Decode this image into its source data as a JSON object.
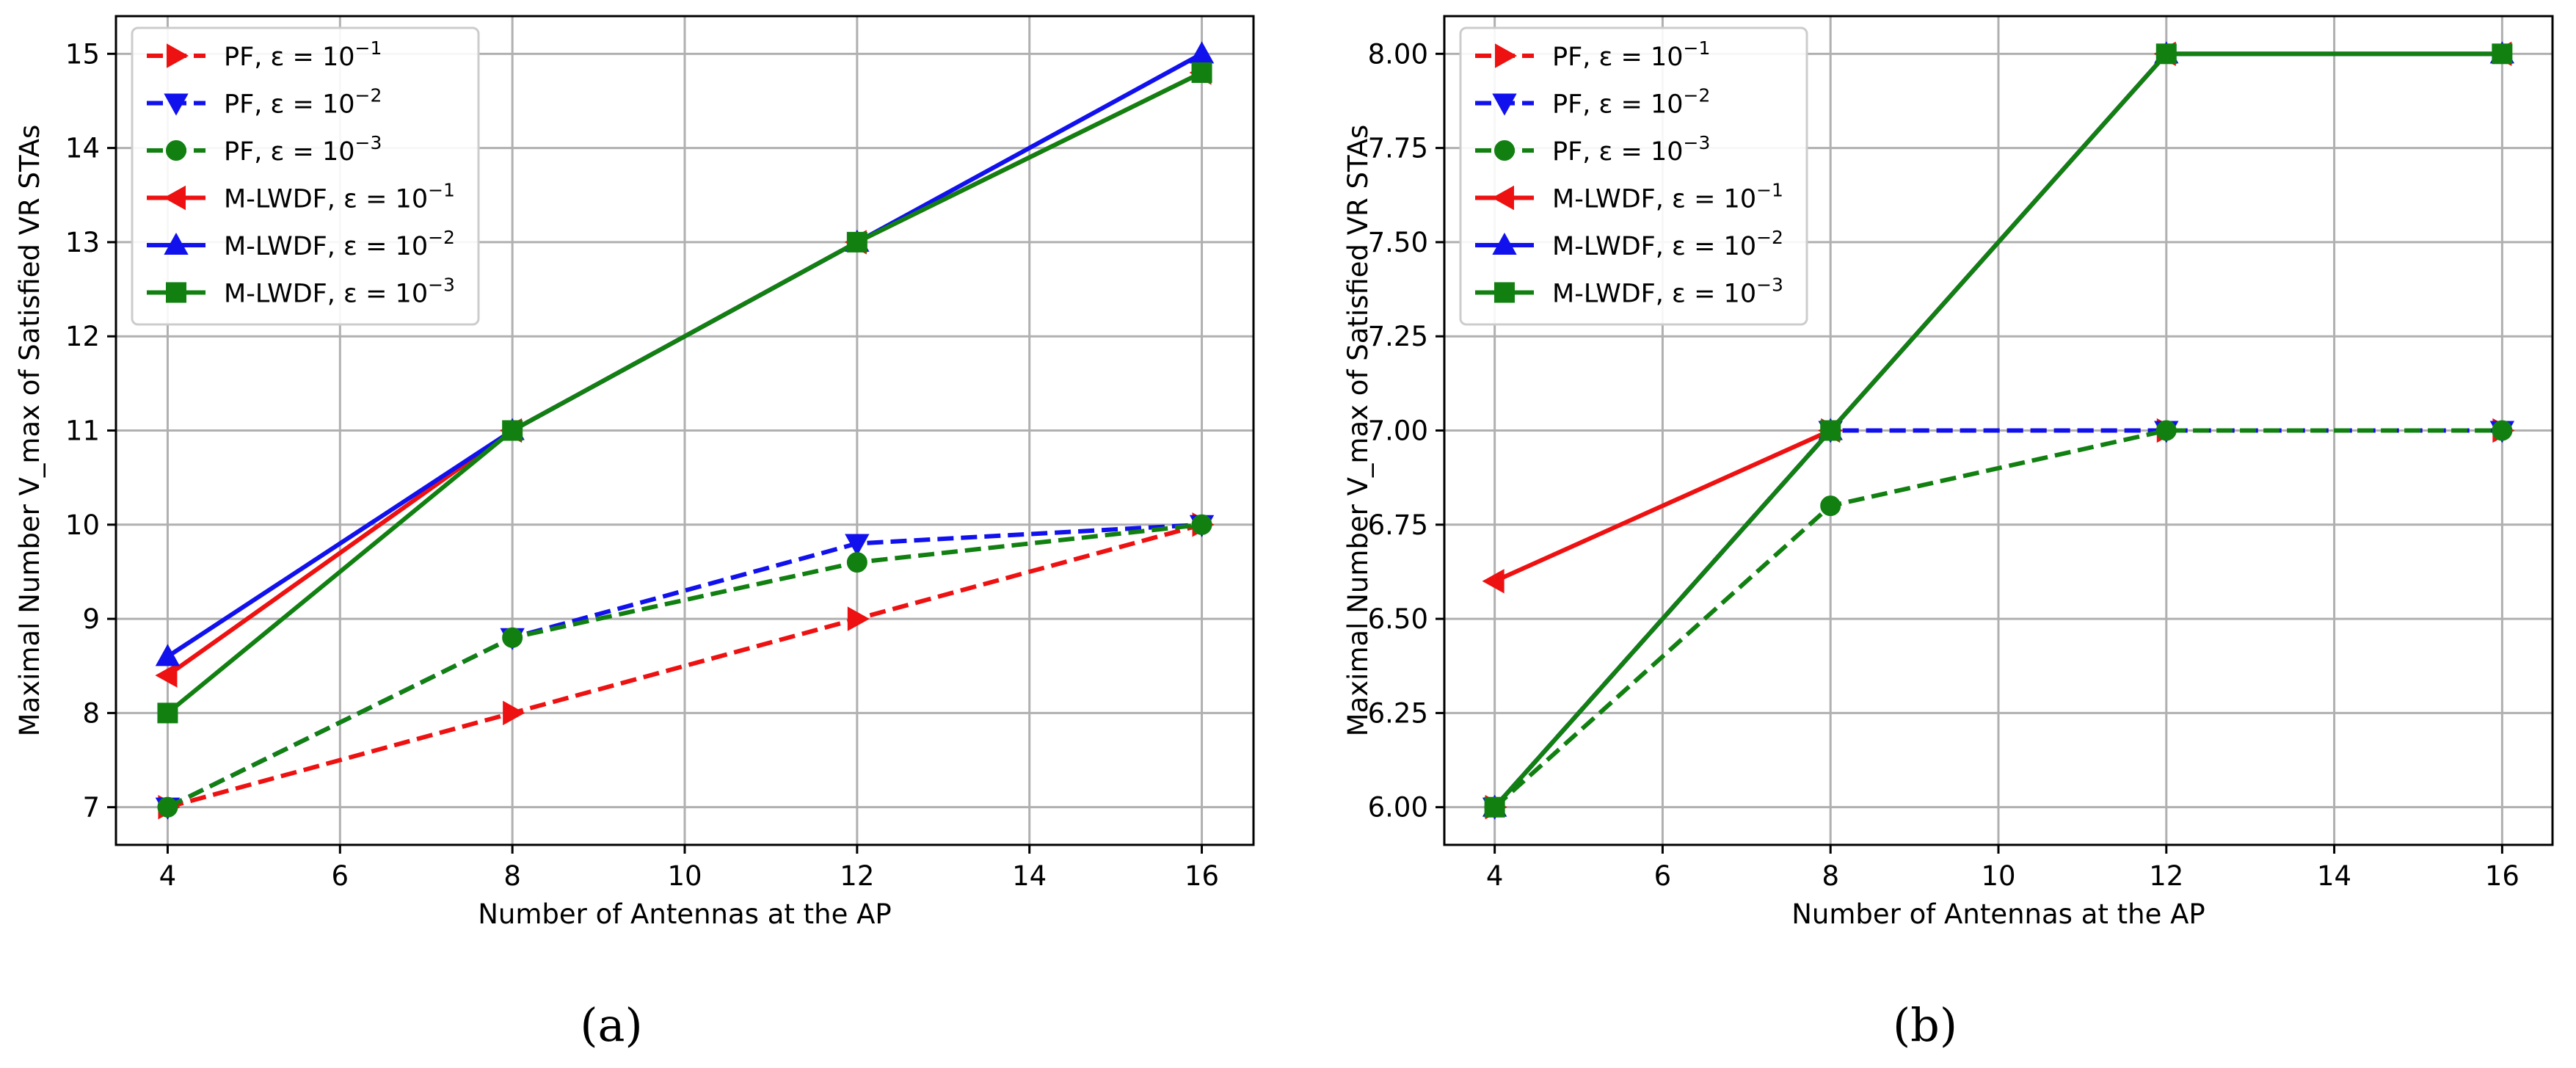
{
  "colors": {
    "red": "#ee1111",
    "blue": "#1111ee",
    "green": "#118011"
  },
  "chart_data": [
    {
      "type": "line",
      "panel_label": "(a)",
      "xlabel": "Number of Antennas at the AP",
      "ylabel": "Maximal Number V_max of Satisfied VR STAs",
      "xlim": [
        3.4,
        16.6
      ],
      "ylim": [
        6.6,
        15.4
      ],
      "xticks": [
        4,
        6,
        8,
        10,
        12,
        14,
        16
      ],
      "yticks": [
        7,
        8,
        9,
        10,
        11,
        12,
        13,
        14,
        15
      ],
      "ytick_labels": [
        "7",
        "8",
        "9",
        "10",
        "11",
        "12",
        "13",
        "14",
        "15"
      ],
      "grid": true,
      "legend_position": "upper-left",
      "x": [
        4,
        8,
        12,
        16
      ],
      "series": [
        {
          "name": "PF, ε = 10",
          "exp": "−1",
          "color": "red",
          "dashed": true,
          "marker": "triangle-right",
          "values": [
            7,
            8,
            9,
            10
          ]
        },
        {
          "name": "PF, ε = 10",
          "exp": "−2",
          "color": "blue",
          "dashed": true,
          "marker": "triangle-down",
          "values": [
            7,
            8.8,
            9.8,
            10
          ]
        },
        {
          "name": "PF, ε = 10",
          "exp": "−3",
          "color": "green",
          "dashed": true,
          "marker": "circle",
          "values": [
            7,
            8.8,
            9.6,
            10
          ]
        },
        {
          "name": "M-LWDF, ε = 10",
          "exp": "−1",
          "color": "red",
          "dashed": false,
          "marker": "triangle-left",
          "values": [
            8.4,
            11,
            13,
            14.8
          ]
        },
        {
          "name": "M-LWDF, ε = 10",
          "exp": "−2",
          "color": "blue",
          "dashed": false,
          "marker": "triangle-up",
          "values": [
            8.6,
            11,
            13,
            15
          ]
        },
        {
          "name": "M-LWDF, ε = 10",
          "exp": "−3",
          "color": "green",
          "dashed": false,
          "marker": "square",
          "values": [
            8,
            11,
            13,
            14.8
          ]
        }
      ]
    },
    {
      "type": "line",
      "panel_label": "(b)",
      "xlabel": "Number of Antennas at the AP",
      "ylabel": "Maximal Number V_max of Satisfied VR STAs",
      "xlim": [
        3.4,
        16.6
      ],
      "ylim": [
        5.9,
        8.1
      ],
      "xticks": [
        4,
        6,
        8,
        10,
        12,
        14,
        16
      ],
      "yticks": [
        6.0,
        6.25,
        6.5,
        6.75,
        7.0,
        7.25,
        7.5,
        7.75,
        8.0
      ],
      "ytick_labels": [
        "6.00",
        "6.25",
        "6.50",
        "6.75",
        "7.00",
        "7.25",
        "7.50",
        "7.75",
        "8.00"
      ],
      "grid": true,
      "legend_position": "upper-left",
      "x": [
        4,
        8,
        12,
        16
      ],
      "series": [
        {
          "name": "PF, ε = 10",
          "exp": "−1",
          "color": "red",
          "dashed": true,
          "marker": "triangle-right",
          "values": [
            6,
            7,
            7,
            7
          ]
        },
        {
          "name": "PF, ε = 10",
          "exp": "−2",
          "color": "blue",
          "dashed": true,
          "marker": "triangle-down",
          "values": [
            6,
            7,
            7,
            7
          ]
        },
        {
          "name": "PF, ε = 10",
          "exp": "−3",
          "color": "green",
          "dashed": true,
          "marker": "circle",
          "values": [
            6,
            6.8,
            7,
            7
          ]
        },
        {
          "name": "M-LWDF, ε = 10",
          "exp": "−1",
          "color": "red",
          "dashed": false,
          "marker": "triangle-left",
          "values": [
            6.6,
            7,
            8,
            8
          ]
        },
        {
          "name": "M-LWDF, ε = 10",
          "exp": "−2",
          "color": "blue",
          "dashed": false,
          "marker": "triangle-up",
          "values": [
            6,
            7,
            8,
            8
          ]
        },
        {
          "name": "M-LWDF, ε = 10",
          "exp": "−3",
          "color": "green",
          "dashed": false,
          "marker": "square",
          "values": [
            6,
            7,
            8,
            8
          ]
        }
      ]
    }
  ]
}
